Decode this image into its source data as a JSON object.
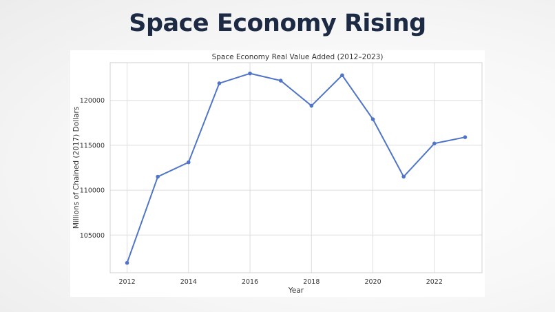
{
  "slide": {
    "title": "Space Economy Rising"
  },
  "colors": {
    "title": "#1c2a44",
    "series": "#4f74c8",
    "grid": "#dddddd",
    "frame": "#d0d0d0"
  },
  "chart_data": {
    "type": "line",
    "title": "Space Economy Real Value Added (2012–2023)",
    "xlabel": "Year",
    "ylabel": "Millions of Chained (2017) Dollars",
    "x": [
      2012,
      2013,
      2014,
      2015,
      2016,
      2017,
      2018,
      2019,
      2020,
      2021,
      2022,
      2023
    ],
    "series": [
      {
        "values": [
          101900,
          111500,
          113100,
          121900,
          123000,
          122200,
          119400,
          122800,
          117900,
          111500,
          115200,
          115900
        ]
      }
    ],
    "xticks": [
      2012,
      2014,
      2016,
      2018,
      2020,
      2022
    ],
    "yticks": [
      105000,
      110000,
      115000,
      120000
    ],
    "xlim": [
      2011.45,
      2023.55
    ],
    "ylim": [
      100800,
      124200
    ],
    "grid": true,
    "legend": "none"
  }
}
